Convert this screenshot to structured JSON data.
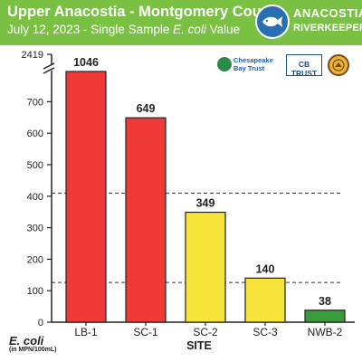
{
  "header": {
    "title": "Upper Anacostia - Montgomery County",
    "subtitle_prefix": "July 12, 2023 - Single Sample ",
    "subtitle_italic": "E. coli",
    "subtitle_suffix": " Value",
    "logo_line1": "ANACOSTIA",
    "logo_line2": "RIVERKEEPER",
    "logo_mark": "®",
    "logo_icon": "fish-icon"
  },
  "sponsors": [
    {
      "name": "Chesapeake Bay Trust",
      "line1": "Chesapeake",
      "line2": "Bay Trust",
      "icon": "leaf-icon"
    },
    {
      "name": "CB TRUST",
      "icon": "license-plate-icon"
    },
    {
      "name": "",
      "icon": "county-seal-icon"
    }
  ],
  "colors": {
    "header_bg": "#7ac143",
    "bar_red": "#f03a3a",
    "bar_yellow": "#f7e43a",
    "bar_green": "#3a9b3a",
    "threshold_line": "#333333"
  },
  "chart_data": {
    "type": "bar",
    "categories": [
      "LB-1",
      "SC-1",
      "SC-2",
      "SC-3",
      "NWB-2"
    ],
    "values": [
      1046,
      649,
      349,
      140,
      38
    ],
    "data_labels": [
      "1046",
      "649",
      "349",
      "140",
      "38"
    ],
    "bar_colors": [
      "#f03a3a",
      "#f03a3a",
      "#f7e43a",
      "#f7e43a",
      "#3a9b3a"
    ],
    "xlabel": "SITE",
    "ylabel": "E. coli",
    "ylabel_unit": "(in MPN/100mL)",
    "y_axis_break": true,
    "ylim": [
      0,
      750
    ],
    "y_top_label": "2419",
    "yticks": [
      0,
      100,
      200,
      300,
      400,
      500,
      600,
      700
    ],
    "thresholds": [
      410,
      126
    ],
    "threshold_style": "dashed",
    "grid": false,
    "legend": "none"
  }
}
